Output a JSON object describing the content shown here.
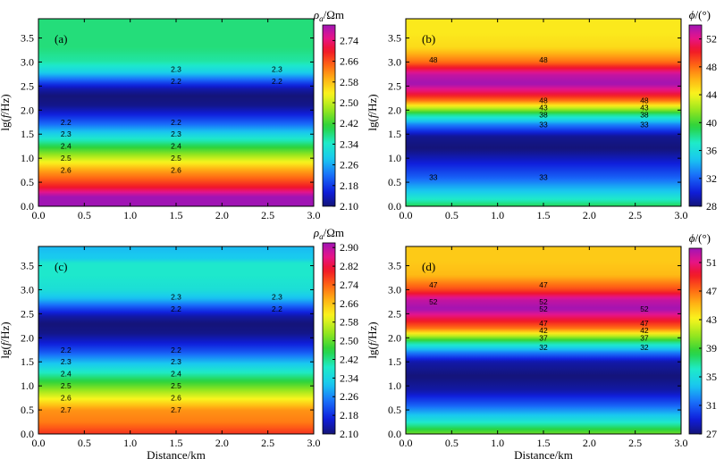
{
  "chart_data": [
    {
      "type": "heatmap",
      "panel_label": "(a)",
      "x": {
        "range": [
          0.0,
          3.0
        ],
        "ticks": [
          "0.0",
          "0.5",
          "1.0",
          "1.5",
          "2.0",
          "2.5",
          "3.0"
        ],
        "label": ""
      },
      "y": {
        "range": [
          0.0,
          3.9
        ],
        "ticks": [
          "0.0",
          "0.5",
          "1.0",
          "1.5",
          "2.0",
          "2.5",
          "3.0",
          "3.5"
        ],
        "label_prefix": "lg(",
        "label_var": "f",
        "label_suffix": "/Hz)"
      },
      "colorbar": {
        "label_var": "ρ",
        "label_sub": "a",
        "label_unit": "/Ωm",
        "min": 2.1,
        "max": 2.8,
        "ticks": [
          "2.10",
          "2.18",
          "2.26",
          "2.34",
          "2.42",
          "2.50",
          "2.58",
          "2.66",
          "2.74"
        ],
        "scale": "rainbow"
      },
      "profile": [
        [
          0.0,
          2.84
        ],
        [
          0.2,
          2.8
        ],
        [
          0.4,
          2.7
        ],
        [
          0.6,
          2.64
        ],
        [
          0.75,
          2.6
        ],
        [
          1.0,
          2.5
        ],
        [
          1.25,
          2.4
        ],
        [
          1.5,
          2.3
        ],
        [
          1.7,
          2.22
        ],
        [
          1.9,
          2.16
        ],
        [
          2.1,
          2.11
        ],
        [
          2.3,
          2.1
        ],
        [
          2.45,
          2.13
        ],
        [
          2.6,
          2.2
        ],
        [
          2.8,
          2.3
        ],
        [
          3.0,
          2.36
        ],
        [
          3.3,
          2.38
        ],
        [
          3.6,
          2.38
        ],
        [
          3.9,
          2.38
        ]
      ],
      "contour_labels": [
        {
          "text": "2.3",
          "x": 1.5,
          "y": 2.85
        },
        {
          "text": "2.3",
          "x": 2.6,
          "y": 2.85
        },
        {
          "text": "2.2",
          "x": 1.5,
          "y": 2.6
        },
        {
          "text": "2.2",
          "x": 2.6,
          "y": 2.6
        },
        {
          "text": "2.2",
          "x": 0.3,
          "y": 1.75
        },
        {
          "text": "2.2",
          "x": 1.5,
          "y": 1.75
        },
        {
          "text": "2.3",
          "x": 0.3,
          "y": 1.5
        },
        {
          "text": "2.3",
          "x": 1.5,
          "y": 1.5
        },
        {
          "text": "2.4",
          "x": 0.3,
          "y": 1.25
        },
        {
          "text": "2.4",
          "x": 1.5,
          "y": 1.25
        },
        {
          "text": "2.5",
          "x": 0.3,
          "y": 1.0
        },
        {
          "text": "2.5",
          "x": 1.5,
          "y": 1.0
        },
        {
          "text": "2.6",
          "x": 0.3,
          "y": 0.75
        },
        {
          "text": "2.6",
          "x": 1.5,
          "y": 0.75
        }
      ]
    },
    {
      "type": "heatmap",
      "panel_label": "(b)",
      "x": {
        "range": [
          0.0,
          3.0
        ],
        "ticks": [
          "0.0",
          "0.5",
          "1.0",
          "1.5",
          "2.0",
          "2.5",
          "3.0"
        ],
        "label": ""
      },
      "y": {
        "range": [
          0.0,
          3.9
        ],
        "ticks": [
          "0.0",
          "0.5",
          "1.0",
          "1.5",
          "2.0",
          "2.5",
          "3.0",
          "3.5"
        ],
        "label_prefix": "lg(",
        "label_var": "f",
        "label_suffix": "/Hz)"
      },
      "colorbar": {
        "label_var": "ϕ",
        "label_sub": "",
        "label_unit": "/(°)",
        "min": 28,
        "max": 54,
        "ticks": [
          "28",
          "32",
          "36",
          "40",
          "44",
          "48",
          "52"
        ],
        "scale": "rainbow"
      },
      "profile": [
        [
          0.0,
          39
        ],
        [
          0.3,
          35
        ],
        [
          0.6,
          32
        ],
        [
          0.9,
          30
        ],
        [
          1.2,
          28
        ],
        [
          1.45,
          28.5
        ],
        [
          1.7,
          33
        ],
        [
          1.9,
          38
        ],
        [
          2.05,
          43
        ],
        [
          2.2,
          48
        ],
        [
          2.35,
          51
        ],
        [
          2.55,
          54
        ],
        [
          2.75,
          53
        ],
        [
          3.0,
          48
        ],
        [
          3.3,
          45
        ],
        [
          3.6,
          44.5
        ],
        [
          3.9,
          44.5
        ]
      ],
      "contour_labels": [
        {
          "text": "48",
          "x": 0.3,
          "y": 3.05
        },
        {
          "text": "48",
          "x": 1.5,
          "y": 3.05
        },
        {
          "text": "48",
          "x": 1.5,
          "y": 2.2
        },
        {
          "text": "48",
          "x": 2.6,
          "y": 2.2
        },
        {
          "text": "43",
          "x": 1.5,
          "y": 2.05
        },
        {
          "text": "43",
          "x": 2.6,
          "y": 2.05
        },
        {
          "text": "38",
          "x": 1.5,
          "y": 1.9
        },
        {
          "text": "38",
          "x": 2.6,
          "y": 1.9
        },
        {
          "text": "33",
          "x": 1.5,
          "y": 1.7
        },
        {
          "text": "33",
          "x": 2.6,
          "y": 1.7
        },
        {
          "text": "33",
          "x": 0.3,
          "y": 0.6
        },
        {
          "text": "33",
          "x": 1.5,
          "y": 0.6
        }
      ]
    },
    {
      "type": "heatmap",
      "panel_label": "(c)",
      "x": {
        "range": [
          0.0,
          3.0
        ],
        "ticks": [
          "0.0",
          "0.5",
          "1.0",
          "1.5",
          "2.0",
          "2.5",
          "3.0"
        ],
        "label": "Distance/km"
      },
      "y": {
        "range": [
          0.0,
          3.9
        ],
        "ticks": [
          "0.0",
          "0.5",
          "1.0",
          "1.5",
          "2.0",
          "2.5",
          "3.0",
          "3.5"
        ],
        "label_prefix": "lg(",
        "label_var": "f",
        "label_suffix": "/Hz)"
      },
      "colorbar": {
        "label_var": "ρ",
        "label_sub": "a",
        "label_unit": "/Ωm",
        "min": 2.1,
        "max": 2.92,
        "ticks": [
          "2.10",
          "2.18",
          "2.26",
          "2.34",
          "2.42",
          "2.50",
          "2.58",
          "2.66",
          "2.74",
          "2.82",
          "2.90"
        ],
        "scale": "rainbow"
      },
      "profile": [
        [
          0.0,
          2.78
        ],
        [
          0.25,
          2.72
        ],
        [
          0.5,
          2.7
        ],
        [
          0.75,
          2.6
        ],
        [
          1.0,
          2.5
        ],
        [
          1.25,
          2.4
        ],
        [
          1.5,
          2.3
        ],
        [
          1.7,
          2.22
        ],
        [
          1.9,
          2.16
        ],
        [
          2.1,
          2.11
        ],
        [
          2.3,
          2.1
        ],
        [
          2.45,
          2.13
        ],
        [
          2.6,
          2.2
        ],
        [
          2.8,
          2.3
        ],
        [
          3.0,
          2.36
        ],
        [
          3.3,
          2.38
        ],
        [
          3.55,
          2.38
        ],
        [
          3.65,
          2.32
        ],
        [
          3.9,
          2.3
        ]
      ],
      "contour_labels": [
        {
          "text": "2.3",
          "x": 1.5,
          "y": 2.85
        },
        {
          "text": "2.3",
          "x": 2.6,
          "y": 2.85
        },
        {
          "text": "2.2",
          "x": 1.5,
          "y": 2.6
        },
        {
          "text": "2.2",
          "x": 2.6,
          "y": 2.6
        },
        {
          "text": "2.2",
          "x": 0.3,
          "y": 1.75
        },
        {
          "text": "2.2",
          "x": 1.5,
          "y": 1.75
        },
        {
          "text": "2.3",
          "x": 0.3,
          "y": 1.5
        },
        {
          "text": "2.3",
          "x": 1.5,
          "y": 1.5
        },
        {
          "text": "2.4",
          "x": 0.3,
          "y": 1.25
        },
        {
          "text": "2.4",
          "x": 1.5,
          "y": 1.25
        },
        {
          "text": "2.5",
          "x": 0.3,
          "y": 1.0
        },
        {
          "text": "2.5",
          "x": 1.5,
          "y": 1.0
        },
        {
          "text": "2.6",
          "x": 0.3,
          "y": 0.75
        },
        {
          "text": "2.6",
          "x": 1.5,
          "y": 0.75
        },
        {
          "text": "2.7",
          "x": 0.3,
          "y": 0.5
        },
        {
          "text": "2.7",
          "x": 1.5,
          "y": 0.5
        }
      ]
    },
    {
      "type": "heatmap",
      "panel_label": "(d)",
      "x": {
        "range": [
          0.0,
          3.0
        ],
        "ticks": [
          "0.0",
          "0.5",
          "1.0",
          "1.5",
          "2.0",
          "2.5",
          "3.0"
        ],
        "label": "Distance/km"
      },
      "y": {
        "range": [
          0.0,
          3.9
        ],
        "ticks": [
          "0.0",
          "0.5",
          "1.0",
          "1.5",
          "2.0",
          "2.5",
          "3.0",
          "3.5"
        ],
        "label_prefix": "lg(",
        "label_var": "f",
        "label_suffix": "/Hz)"
      },
      "colorbar": {
        "label_var": "ϕ",
        "label_sub": "",
        "label_unit": "/(°)",
        "min": 27,
        "max": 53,
        "ticks": [
          "27",
          "31",
          "35",
          "39",
          "43",
          "47",
          "51"
        ],
        "scale": "rainbow"
      },
      "profile": [
        [
          0.0,
          40
        ],
        [
          0.3,
          35
        ],
        [
          0.6,
          31
        ],
        [
          0.9,
          28
        ],
        [
          1.2,
          27
        ],
        [
          1.5,
          28
        ],
        [
          1.7,
          32
        ],
        [
          1.9,
          37
        ],
        [
          2.05,
          42
        ],
        [
          2.2,
          47
        ],
        [
          2.4,
          50
        ],
        [
          2.6,
          53
        ],
        [
          2.8,
          52
        ],
        [
          3.0,
          48
        ],
        [
          3.3,
          45
        ],
        [
          3.6,
          44.5
        ],
        [
          3.9,
          44.5
        ]
      ],
      "contour_labels": [
        {
          "text": "47",
          "x": 0.3,
          "y": 3.1
        },
        {
          "text": "47",
          "x": 1.5,
          "y": 3.1
        },
        {
          "text": "52",
          "x": 0.3,
          "y": 2.75
        },
        {
          "text": "52",
          "x": 1.5,
          "y": 2.75
        },
        {
          "text": "52",
          "x": 1.5,
          "y": 2.6
        },
        {
          "text": "52",
          "x": 2.6,
          "y": 2.6
        },
        {
          "text": "47",
          "x": 1.5,
          "y": 2.3
        },
        {
          "text": "47",
          "x": 2.6,
          "y": 2.3
        },
        {
          "text": "42",
          "x": 1.5,
          "y": 2.15
        },
        {
          "text": "42",
          "x": 2.6,
          "y": 2.15
        },
        {
          "text": "37",
          "x": 1.5,
          "y": 2.0
        },
        {
          "text": "37",
          "x": 2.6,
          "y": 2.0
        },
        {
          "text": "32",
          "x": 1.5,
          "y": 1.8
        },
        {
          "text": "32",
          "x": 2.6,
          "y": 1.8
        }
      ]
    }
  ]
}
